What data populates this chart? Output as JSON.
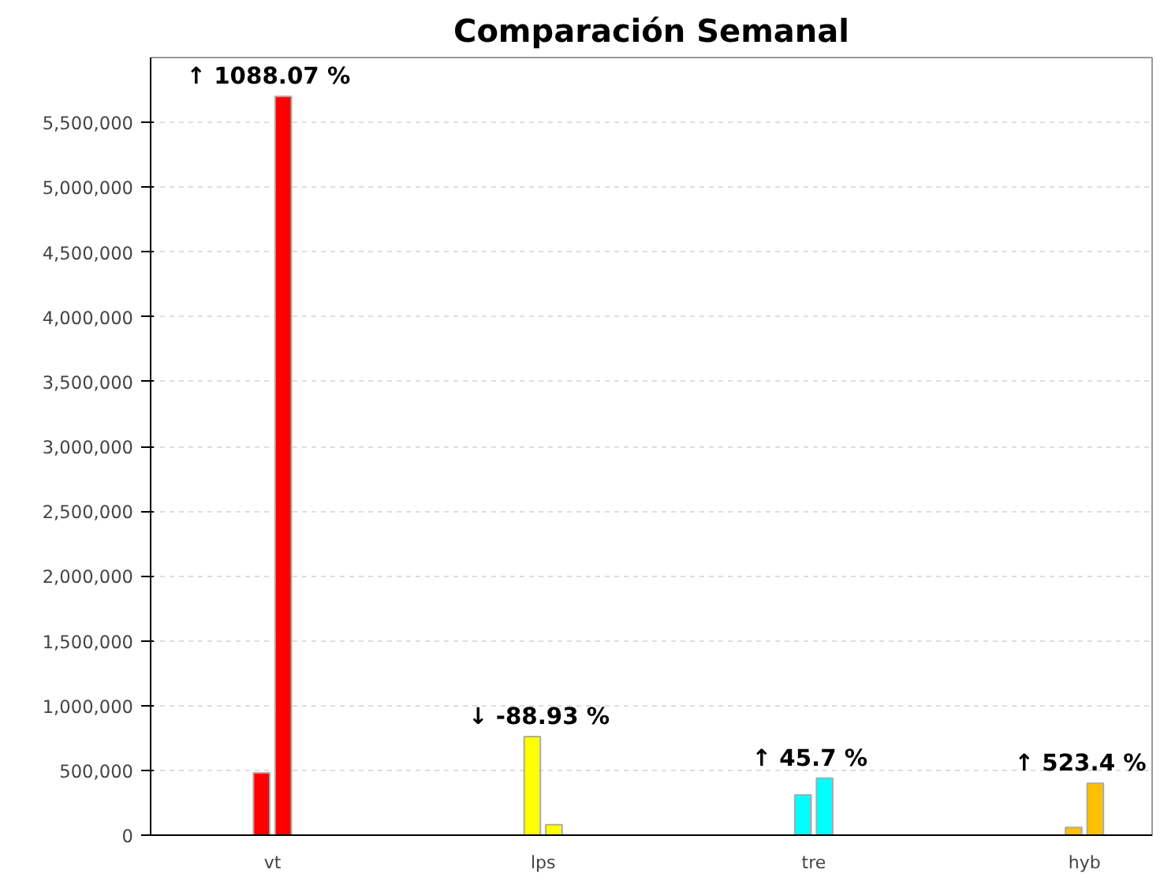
{
  "chart_data": {
    "type": "bar",
    "title": "Comparación Semanal",
    "categories": [
      "vt",
      "lps",
      "tre",
      "hyb"
    ],
    "series": [
      {
        "colors": [
          "#ff0000",
          "#ffff00",
          "#00ffff",
          "#ffc000"
        ],
        "values": [
          480000,
          760000,
          310000,
          60000
        ]
      },
      {
        "colors": [
          "#ff0000",
          "#ffff00",
          "#00ffff",
          "#ffc000"
        ],
        "values": [
          5700000,
          80000,
          440000,
          400000
        ]
      }
    ],
    "ylim": [
      0,
      6000000
    ],
    "yticks": [
      {
        "value": 0,
        "label": "0"
      },
      {
        "value": 500000,
        "label": "500,000"
      },
      {
        "value": 1000000,
        "label": "1,000,000"
      },
      {
        "value": 1500000,
        "label": "1,500,000"
      },
      {
        "value": 2000000,
        "label": "2,000,000"
      },
      {
        "value": 2500000,
        "label": "2,500,000"
      },
      {
        "value": 3000000,
        "label": "3,000,000"
      },
      {
        "value": 3500000,
        "label": "3,500,000"
      },
      {
        "value": 4000000,
        "label": "4,000,000"
      },
      {
        "value": 4500000,
        "label": "4,500,000"
      },
      {
        "value": 5000000,
        "label": "5,000,000"
      },
      {
        "value": 5500000,
        "label": "5,500,000"
      }
    ],
    "grid": "y",
    "annotations": [
      "↑  1088.07 %",
      "↓  -88.93 %",
      "↑  45.7 %",
      "↑  523.4 %"
    ]
  }
}
